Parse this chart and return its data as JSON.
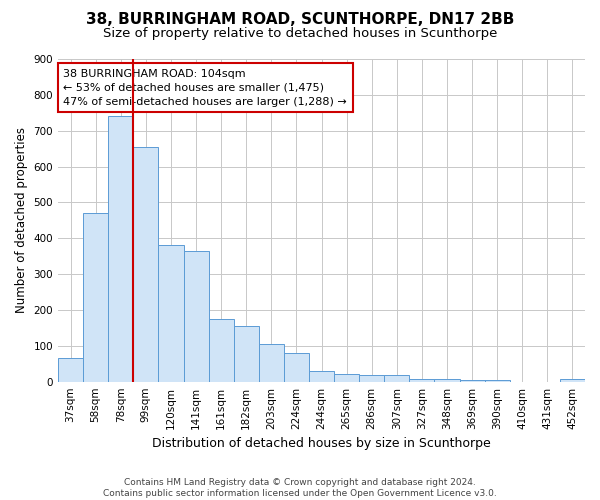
{
  "title": "38, BURRINGHAM ROAD, SCUNTHORPE, DN17 2BB",
  "subtitle": "Size of property relative to detached houses in Scunthorpe",
  "xlabel": "Distribution of detached houses by size in Scunthorpe",
  "ylabel": "Number of detached properties",
  "footer_line1": "Contains HM Land Registry data © Crown copyright and database right 2024.",
  "footer_line2": "Contains public sector information licensed under the Open Government Licence v3.0.",
  "bar_labels": [
    "37sqm",
    "58sqm",
    "78sqm",
    "99sqm",
    "120sqm",
    "141sqm",
    "161sqm",
    "182sqm",
    "203sqm",
    "224sqm",
    "244sqm",
    "265sqm",
    "286sqm",
    "307sqm",
    "327sqm",
    "348sqm",
    "369sqm",
    "390sqm",
    "410sqm",
    "431sqm",
    "452sqm"
  ],
  "bar_values": [
    65,
    470,
    740,
    655,
    380,
    365,
    175,
    155,
    105,
    80,
    30,
    22,
    20,
    20,
    8,
    8,
    6,
    5,
    0,
    0,
    8
  ],
  "bar_color": "#d0e4f7",
  "bar_edgecolor": "#5b9bd5",
  "line_bar_index": 3,
  "line_color": "#cc0000",
  "ylim": [
    0,
    900
  ],
  "yticks": [
    0,
    100,
    200,
    300,
    400,
    500,
    600,
    700,
    800,
    900
  ],
  "annotation_text": "38 BURRINGHAM ROAD: 104sqm\n← 53% of detached houses are smaller (1,475)\n47% of semi-detached houses are larger (1,288) →",
  "annotation_box_color": "#ffffff",
  "annotation_box_edgecolor": "#cc0000",
  "title_fontsize": 11,
  "subtitle_fontsize": 9.5,
  "ylabel_fontsize": 8.5,
  "xlabel_fontsize": 9,
  "tick_fontsize": 7.5,
  "annotation_fontsize": 8,
  "footer_fontsize": 6.5,
  "background_color": "#ffffff",
  "grid_color": "#c8c8c8"
}
